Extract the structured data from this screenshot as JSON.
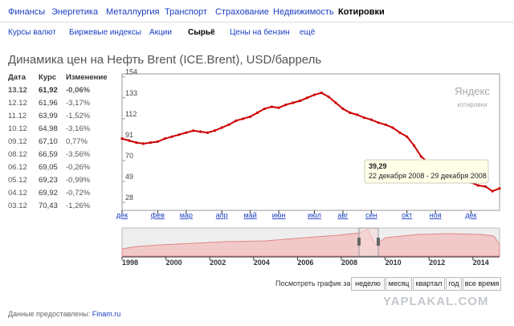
{
  "nav": [
    "Финансы",
    "Энергетика",
    "Металлургия",
    "Транспорт",
    "Страхование",
    "Недвижимость",
    "Котировки"
  ],
  "subnav": [
    "Курсы валют",
    "Биржевые индексы",
    "Акции",
    "Сырьё",
    "Цены на бензин",
    "ещё"
  ],
  "title": "Динамика цен на Нефть Brent (ICE.Brent), USD/баррель",
  "table": {
    "header": [
      "Дата",
      "Курс",
      "Изменение"
    ],
    "rows": [
      [
        "13.12",
        "61,92",
        "-0,06%"
      ],
      [
        "12.12",
        "61,96",
        "-3,17%"
      ],
      [
        "11.12",
        "63,99",
        "-1,52%"
      ],
      [
        "10.12",
        "64,98",
        "-3,16%"
      ],
      [
        "09.12",
        "67,10",
        "0,77%"
      ],
      [
        "08.12",
        "66,59",
        "-3,56%"
      ],
      [
        "06.12",
        "69,05",
        "-0,26%"
      ],
      [
        "05.12",
        "69,23",
        "-0,99%"
      ],
      [
        "04.12",
        "69,92",
        "-0,72%"
      ],
      [
        "03.12",
        "70,43",
        "-1,26%"
      ]
    ]
  },
  "logo": {
    "name": "Яндекс",
    "sub": "котировки"
  },
  "chart_data": {
    "type": "line",
    "color": "#cc0000",
    "categories": [
      "дек",
      null,
      null,
      null,
      null,
      "фев",
      null,
      null,
      null,
      "мар",
      null,
      null,
      null,
      null,
      "апр",
      null,
      null,
      null,
      "май",
      null,
      null,
      null,
      "июн",
      null,
      null,
      null,
      null,
      "июл",
      null,
      null,
      null,
      "авг",
      null,
      null,
      null,
      "сен",
      null,
      null,
      null,
      null,
      "окт",
      null,
      null,
      null,
      "ноя",
      null,
      null,
      null,
      null,
      "дек",
      null,
      null,
      null,
      null
    ],
    "values": [
      92,
      90,
      88,
      87,
      88,
      89,
      92,
      94,
      96,
      98,
      100,
      99,
      98,
      100,
      103,
      106,
      110,
      112,
      114,
      118,
      122,
      124,
      123,
      126,
      128,
      130,
      133,
      136,
      138,
      134,
      128,
      122,
      118,
      116,
      113,
      111,
      108,
      106,
      103,
      98,
      94,
      85,
      74,
      68,
      64,
      60,
      56,
      52,
      50,
      48,
      45,
      44,
      39.29,
      42
    ],
    "ylim": [
      20,
      157
    ],
    "yticks": [
      28,
      49,
      70,
      91,
      112,
      133,
      154
    ],
    "tooltip": {
      "label": "39,29",
      "dates": "22 декабря 2008 - 29 декабря 2008"
    }
  },
  "navigator": {
    "years": [
      1998,
      2000,
      2002,
      2004,
      2006,
      2008,
      2010,
      2012,
      2014
    ]
  },
  "period": {
    "label": "Посмотреть график за:",
    "buttons": [
      "неделю",
      "месяц",
      "квартал",
      "год",
      "все время"
    ]
  },
  "footer": {
    "label": "Данные предоставлены:",
    "source": "Finam.ru"
  },
  "watermark": "YAPLAKAL.COM"
}
